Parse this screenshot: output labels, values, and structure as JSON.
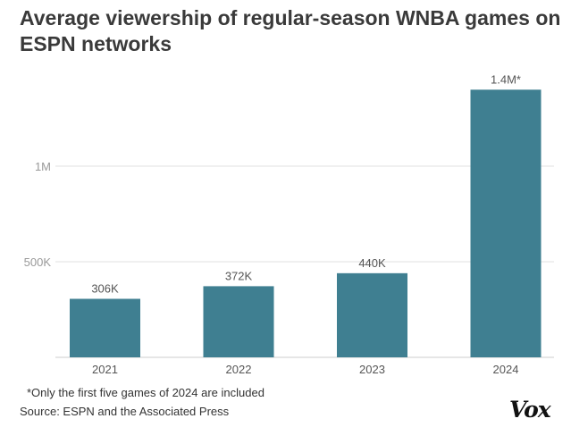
{
  "chart_data": {
    "type": "bar",
    "title": "Average viewership of regular-season WNBA games on ESPN networks",
    "categories": [
      "2021",
      "2022",
      "2023",
      "2024"
    ],
    "values": [
      306000,
      372000,
      440000,
      1400000
    ],
    "data_labels": [
      "306K",
      "372K",
      "440K",
      "1.4M*"
    ],
    "ylim": [
      0,
      1450000
    ],
    "yticks": [
      {
        "value": 500000,
        "label": "500K"
      },
      {
        "value": 1000000,
        "label": "1M"
      }
    ],
    "grid": true,
    "bar_color": "#3f7f91",
    "xlabel": "",
    "ylabel": ""
  },
  "footnote": "*Only the first five games of 2024 are included",
  "source": "Source: ESPN and the Associated Press",
  "logo": "Vox"
}
